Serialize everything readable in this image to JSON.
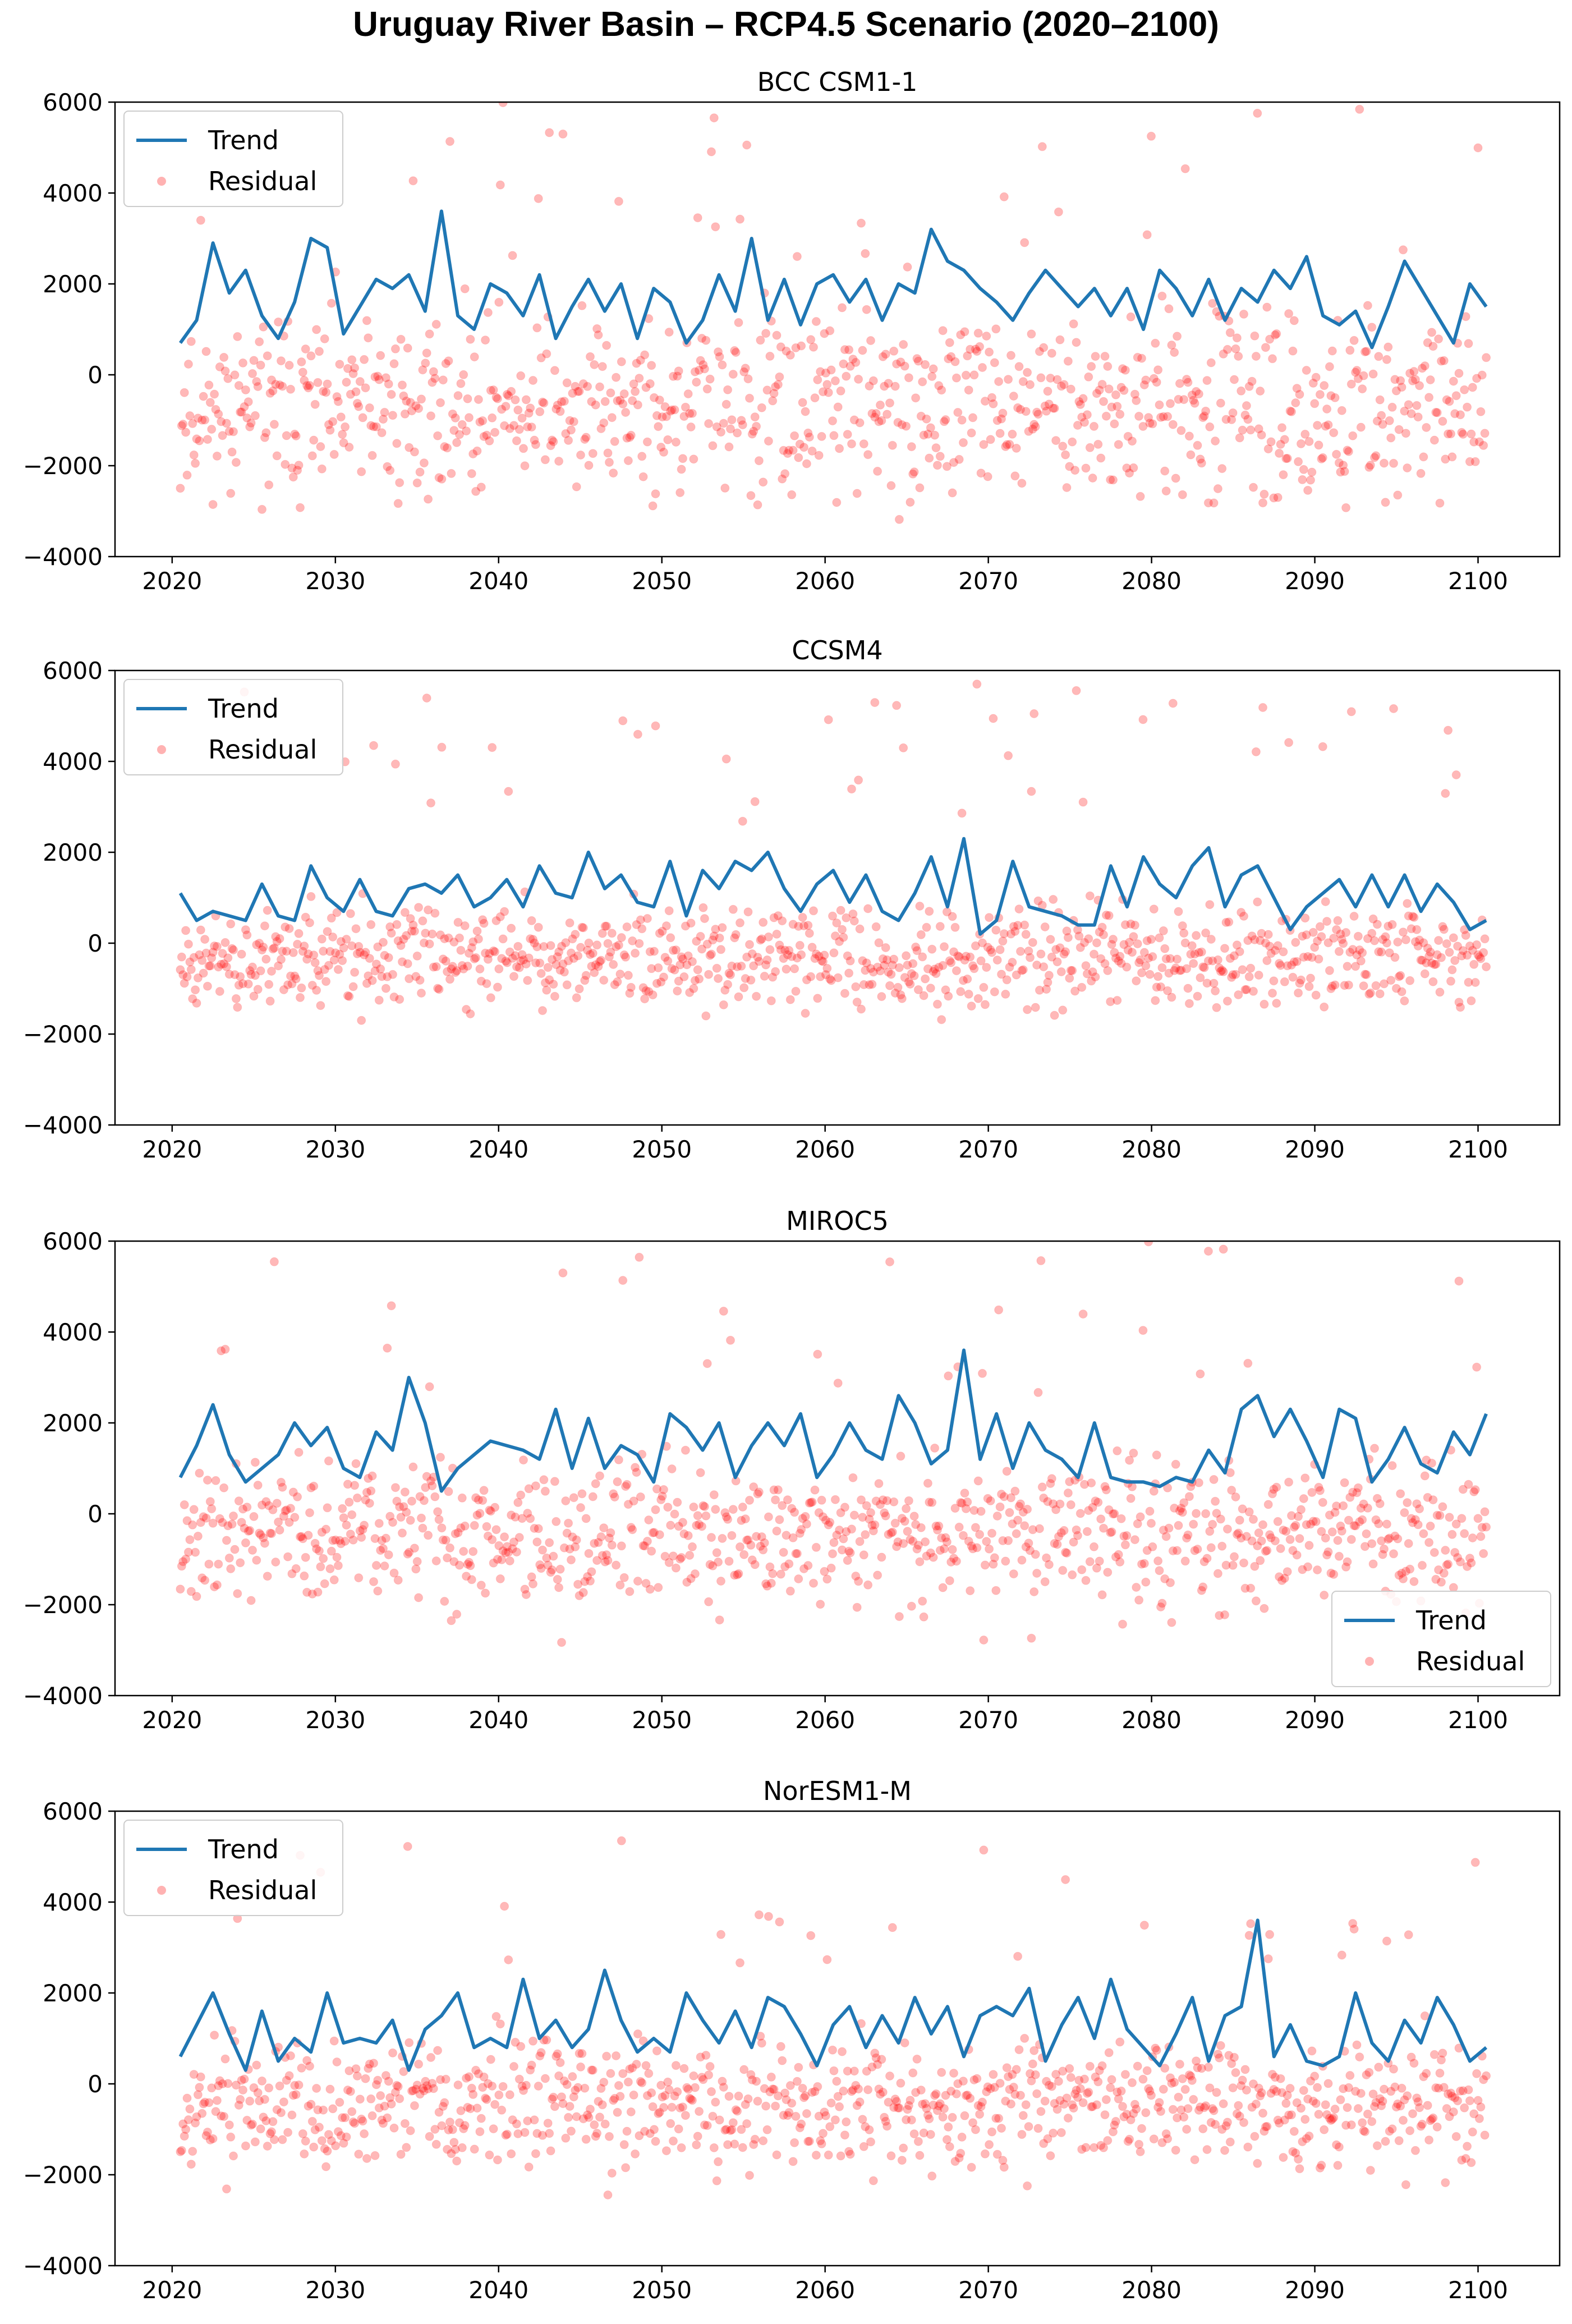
{
  "title": "Uruguay River Basin – RCP4.5 Scenario (2020–2100)",
  "colors": {
    "trend": "#1f77b4",
    "residual": "#ff0000",
    "axis": "#000000"
  },
  "chart_data": [
    {
      "type": "line+scatter",
      "title": "BCC CSM1-1",
      "xlim": [
        2016.5,
        2105
      ],
      "ylim": [
        -4000,
        6000
      ],
      "xticks": [
        2020,
        2030,
        2040,
        2050,
        2060,
        2070,
        2080,
        2090,
        2100
      ],
      "yticks": [
        -4000,
        -2000,
        0,
        2000,
        4000,
        6000
      ],
      "legend": {
        "position": "upper-left",
        "entries": [
          "Trend",
          "Residual"
        ]
      },
      "trend": {
        "name": "Trend",
        "x": [
          2020.5,
          2021.5,
          2022.5,
          2023.5,
          2024.5,
          2025.5,
          2026.5,
          2027.5,
          2028.5,
          2029.5,
          2030.5,
          2031.5,
          2032.5,
          2033.5,
          2034.5,
          2035.5,
          2036.5,
          2037.5,
          2038.5,
          2039.5,
          2040.5,
          2041.5,
          2042.5,
          2043.5,
          2044.5,
          2045.5,
          2046.5,
          2047.5,
          2048.5,
          2049.5,
          2050.5,
          2051.5,
          2052.5,
          2053.5,
          2054.5,
          2055.5,
          2056.5,
          2057.5,
          2058.5,
          2059.5,
          2060.5,
          2061.5,
          2062.5,
          2063.5,
          2064.5,
          2065.5,
          2066.5,
          2067.5,
          2068.5,
          2069.5,
          2070.5,
          2071.5,
          2072.5,
          2073.5,
          2074.5,
          2075.5,
          2076.5,
          2077.5,
          2078.5,
          2079.5,
          2080.5,
          2081.5,
          2082.5,
          2083.5,
          2084.5,
          2085.5,
          2086.5,
          2087.5,
          2088.5,
          2089.5,
          2090.5,
          2091.5,
          2092.5,
          2093.5,
          2094.5,
          2095.5,
          2096.5,
          2097.5,
          2098.5,
          2099.5,
          2100.5
        ],
        "y": [
          700,
          1200,
          2900,
          1800,
          2300,
          1300,
          800,
          1600,
          3000,
          2800,
          900,
          1500,
          2100,
          1900,
          2200,
          1400,
          3600,
          1300,
          1000,
          2000,
          1800,
          1300,
          2200,
          800,
          1500,
          2100,
          1400,
          2000,
          800,
          1900,
          1600,
          700,
          1200,
          2200,
          1400,
          3000,
          1200,
          2100,
          1100,
          2000,
          2200,
          1600,
          2100,
          1200,
          2000,
          1800,
          3200,
          2500,
          2300,
          1900,
          1600,
          1200,
          1800,
          2300,
          1900,
          1500,
          1900,
          1300,
          1900,
          1000,
          2300,
          1900,
          1300,
          2100,
          1200,
          1900,
          1600,
          2300,
          1900,
          2600,
          1300,
          1100,
          1400,
          600,
          1500,
          2500,
          1900,
          1300,
          700,
          2000,
          1500
        ]
      },
      "residual": {
        "name": "Residual",
        "count": 960,
        "center": -700,
        "spread": 1000,
        "max": 6000,
        "min": -3400,
        "seed": 11
      }
    },
    {
      "type": "line+scatter",
      "title": "CCSM4",
      "xlim": [
        2016.5,
        2105
      ],
      "ylim": [
        -4000,
        6000
      ],
      "xticks": [
        2020,
        2030,
        2040,
        2050,
        2060,
        2070,
        2080,
        2090,
        2100
      ],
      "yticks": [
        -4000,
        -2000,
        0,
        2000,
        4000,
        6000
      ],
      "legend": {
        "position": "upper-left",
        "entries": [
          "Trend",
          "Residual"
        ]
      },
      "trend": {
        "name": "Trend",
        "x": [
          2020.5,
          2021.5,
          2022.5,
          2023.5,
          2024.5,
          2025.5,
          2026.5,
          2027.5,
          2028.5,
          2029.5,
          2030.5,
          2031.5,
          2032.5,
          2033.5,
          2034.5,
          2035.5,
          2036.5,
          2037.5,
          2038.5,
          2039.5,
          2040.5,
          2041.5,
          2042.5,
          2043.5,
          2044.5,
          2045.5,
          2046.5,
          2047.5,
          2048.5,
          2049.5,
          2050.5,
          2051.5,
          2052.5,
          2053.5,
          2054.5,
          2055.5,
          2056.5,
          2057.5,
          2058.5,
          2059.5,
          2060.5,
          2061.5,
          2062.5,
          2063.5,
          2064.5,
          2065.5,
          2066.5,
          2067.5,
          2068.5,
          2069.5,
          2070.5,
          2071.5,
          2072.5,
          2073.5,
          2074.5,
          2075.5,
          2076.5,
          2077.5,
          2078.5,
          2079.5,
          2080.5,
          2081.5,
          2082.5,
          2083.5,
          2084.5,
          2085.5,
          2086.5,
          2087.5,
          2088.5,
          2089.5,
          2090.5,
          2091.5,
          2092.5,
          2093.5,
          2094.5,
          2095.5,
          2096.5,
          2097.5,
          2098.5,
          2099.5,
          2100.5
        ],
        "y": [
          1100,
          500,
          700,
          600,
          500,
          1300,
          600,
          500,
          1700,
          1000,
          700,
          1400,
          700,
          600,
          1200,
          1300,
          1100,
          1500,
          800,
          1000,
          1400,
          800,
          1700,
          1100,
          1000,
          2000,
          1200,
          1500,
          900,
          800,
          1800,
          600,
          1600,
          1200,
          1800,
          1600,
          2000,
          1200,
          700,
          1300,
          1600,
          900,
          1500,
          700,
          500,
          1100,
          1900,
          800,
          2300,
          200,
          500,
          1800,
          800,
          700,
          600,
          400,
          400,
          1700,
          800,
          1900,
          1300,
          1000,
          1700,
          2100,
          800,
          1500,
          1700,
          1000,
          300,
          800,
          1100,
          1400,
          800,
          1500,
          800,
          1500,
          700,
          1300,
          900,
          300,
          500
        ]
      },
      "residual": {
        "name": "Residual",
        "count": 960,
        "center": -300,
        "spread": 550,
        "max": 5800,
        "min": -1900,
        "seed": 23
      }
    },
    {
      "type": "line+scatter",
      "title": "MIROC5",
      "xlim": [
        2016.5,
        2105
      ],
      "ylim": [
        -4000,
        6000
      ],
      "xticks": [
        2020,
        2030,
        2040,
        2050,
        2060,
        2070,
        2080,
        2090,
        2100
      ],
      "yticks": [
        -4000,
        -2000,
        0,
        2000,
        4000,
        6000
      ],
      "legend": {
        "position": "lower-right",
        "entries": [
          "Trend",
          "Residual"
        ]
      },
      "trend": {
        "name": "Trend",
        "x": [
          2020.5,
          2021.5,
          2022.5,
          2023.5,
          2024.5,
          2025.5,
          2026.5,
          2027.5,
          2028.5,
          2029.5,
          2030.5,
          2031.5,
          2032.5,
          2033.5,
          2034.5,
          2035.5,
          2036.5,
          2037.5,
          2038.5,
          2039.5,
          2040.5,
          2041.5,
          2042.5,
          2043.5,
          2044.5,
          2045.5,
          2046.5,
          2047.5,
          2048.5,
          2049.5,
          2050.5,
          2051.5,
          2052.5,
          2053.5,
          2054.5,
          2055.5,
          2056.5,
          2057.5,
          2058.5,
          2059.5,
          2060.5,
          2061.5,
          2062.5,
          2063.5,
          2064.5,
          2065.5,
          2066.5,
          2067.5,
          2068.5,
          2069.5,
          2070.5,
          2071.5,
          2072.5,
          2073.5,
          2074.5,
          2075.5,
          2076.5,
          2077.5,
          2078.5,
          2079.5,
          2080.5,
          2081.5,
          2082.5,
          2083.5,
          2084.5,
          2085.5,
          2086.5,
          2087.5,
          2088.5,
          2089.5,
          2090.5,
          2091.5,
          2092.5,
          2093.5,
          2094.5,
          2095.5,
          2096.5,
          2097.5,
          2098.5,
          2099.5,
          2100.5
        ],
        "y": [
          800,
          1500,
          2400,
          1300,
          700,
          1000,
          1300,
          2000,
          1500,
          1900,
          1000,
          800,
          1800,
          1400,
          3000,
          2000,
          500,
          1000,
          1300,
          1600,
          1500,
          1400,
          1200,
          2300,
          1000,
          2100,
          1000,
          1500,
          1300,
          700,
          2200,
          1900,
          1400,
          2000,
          800,
          1500,
          2000,
          1500,
          2200,
          800,
          1300,
          2000,
          1400,
          1200,
          2600,
          2000,
          1100,
          1400,
          3600,
          1200,
          2200,
          1000,
          2000,
          1400,
          1200,
          800,
          2000,
          800,
          700,
          700,
          600,
          800,
          700,
          1400,
          900,
          2300,
          2600,
          1700,
          2300,
          1600,
          800,
          2300,
          2100,
          700,
          1200,
          1900,
          1100,
          900,
          1800,
          1300,
          2200
        ]
      },
      "residual": {
        "name": "Residual",
        "count": 960,
        "center": -400,
        "spread": 800,
        "max": 6000,
        "min": -3400,
        "seed": 37
      }
    },
    {
      "type": "line+scatter",
      "title": "NorESM1-M",
      "xlim": [
        2016.5,
        2105
      ],
      "ylim": [
        -4000,
        6000
      ],
      "xticks": [
        2020,
        2030,
        2040,
        2050,
        2060,
        2070,
        2080,
        2090,
        2100
      ],
      "yticks": [
        -4000,
        -2000,
        0,
        2000,
        4000,
        6000
      ],
      "legend": {
        "position": "upper-left",
        "entries": [
          "Trend",
          "Residual"
        ]
      },
      "trend": {
        "name": "Trend",
        "x": [
          2020.5,
          2021.5,
          2022.5,
          2023.5,
          2024.5,
          2025.5,
          2026.5,
          2027.5,
          2028.5,
          2029.5,
          2030.5,
          2031.5,
          2032.5,
          2033.5,
          2034.5,
          2035.5,
          2036.5,
          2037.5,
          2038.5,
          2039.5,
          2040.5,
          2041.5,
          2042.5,
          2043.5,
          2044.5,
          2045.5,
          2046.5,
          2047.5,
          2048.5,
          2049.5,
          2050.5,
          2051.5,
          2052.5,
          2053.5,
          2054.5,
          2055.5,
          2056.5,
          2057.5,
          2058.5,
          2059.5,
          2060.5,
          2061.5,
          2062.5,
          2063.5,
          2064.5,
          2065.5,
          2066.5,
          2067.5,
          2068.5,
          2069.5,
          2070.5,
          2071.5,
          2072.5,
          2073.5,
          2074.5,
          2075.5,
          2076.5,
          2077.5,
          2078.5,
          2079.5,
          2080.5,
          2081.5,
          2082.5,
          2083.5,
          2084.5,
          2085.5,
          2086.5,
          2087.5,
          2088.5,
          2089.5,
          2090.5,
          2091.5,
          2092.5,
          2093.5,
          2094.5,
          2095.5,
          2096.5,
          2097.5,
          2098.5,
          2099.5,
          2100.5
        ],
        "y": [
          600,
          1300,
          2000,
          1100,
          300,
          1600,
          500,
          1000,
          700,
          2000,
          900,
          1000,
          900,
          1400,
          300,
          1200,
          1500,
          2000,
          800,
          1000,
          800,
          2300,
          1000,
          1400,
          800,
          1200,
          2500,
          1400,
          700,
          1000,
          700,
          2000,
          1400,
          900,
          1600,
          800,
          1900,
          1700,
          1100,
          400,
          1300,
          1700,
          800,
          1500,
          900,
          1900,
          1100,
          1700,
          600,
          1500,
          1700,
          1500,
          2100,
          500,
          1300,
          1900,
          1000,
          2300,
          1200,
          800,
          400,
          1100,
          1900,
          500,
          1500,
          1700,
          3600,
          600,
          1300,
          500,
          400,
          600,
          2000,
          900,
          500,
          1400,
          900,
          1900,
          1300,
          500,
          800
        ]
      },
      "residual": {
        "name": "Residual",
        "count": 960,
        "center": -400,
        "spread": 700,
        "max": 5400,
        "min": -3300,
        "seed": 53
      }
    }
  ]
}
